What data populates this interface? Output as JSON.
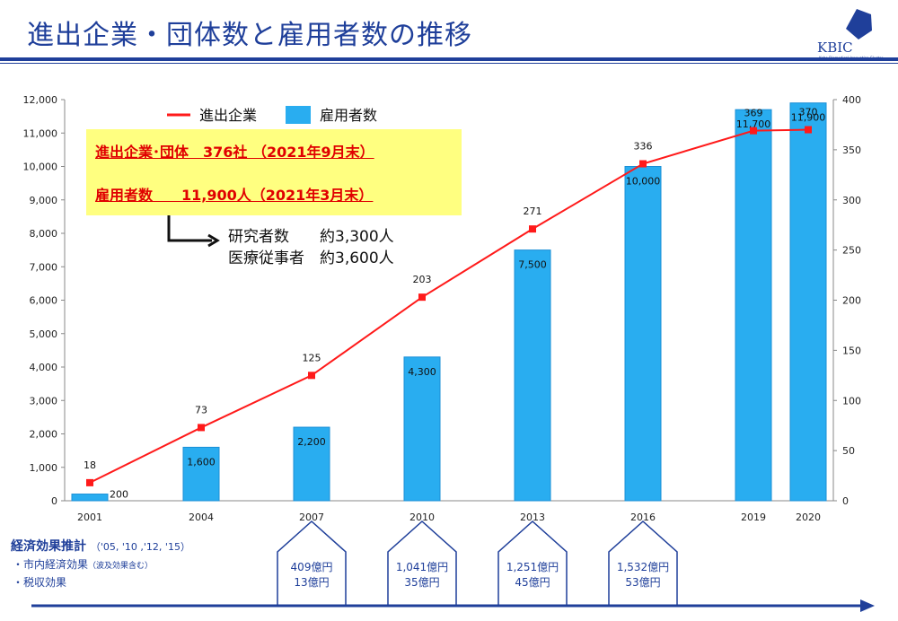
{
  "title": "進出企業・団体数と雇用者数の推移",
  "logo": {
    "text": "KBIC",
    "subtitle": "Kobe Biomedical Innovation Cluster"
  },
  "highlight": {
    "line1": "進出企業･団体　376社 （2021年9月末）",
    "line2": "雇用者数　　11,900人（2021年3月末）"
  },
  "breakdown": {
    "line1": "研究者数　　約3,300人",
    "line2": "医療従事者　約3,600人"
  },
  "economic": {
    "title": "経済効果推計",
    "years": "（'05, '10 ,'12, '15）",
    "item1": "・市内経済効果",
    "item1_note": "（波及効果含む）",
    "item2": "・税収効果",
    "houses": [
      {
        "category": "2007",
        "line1": "409億円",
        "line2": "13億円"
      },
      {
        "category": "2010",
        "line1": "1,041億円",
        "line2": "35億円"
      },
      {
        "category": "2013",
        "line1": "1,251億円",
        "line2": "45億円"
      },
      {
        "category": "2016",
        "line1": "1,532億円",
        "line2": "53億円"
      }
    ]
  },
  "chart_data": {
    "type": "bar",
    "categories": [
      "2001",
      "2004",
      "2007",
      "2010",
      "2013",
      "2016",
      "2019",
      "2020"
    ],
    "series": [
      {
        "name": "雇用者数",
        "type": "bar",
        "axis": "left",
        "values": [
          200,
          1600,
          2200,
          4300,
          7500,
          10000,
          11700,
          11900
        ],
        "labels": [
          "200",
          "1,600",
          "2,200",
          "4,300",
          "7,500",
          "10,000",
          "11,700",
          "11,900"
        ]
      },
      {
        "name": "進出企業",
        "type": "line",
        "axis": "right",
        "values": [
          18,
          73,
          125,
          203,
          271,
          336,
          369,
          370
        ],
        "labels": [
          "18",
          "73",
          "125",
          "203",
          "271",
          "336",
          "369",
          "370"
        ]
      }
    ],
    "y_left": {
      "min": 0,
      "max": 12000,
      "step": 1000,
      "ticks": [
        "0",
        "1,000",
        "2,000",
        "3,000",
        "4,000",
        "5,000",
        "6,000",
        "7,000",
        "8,000",
        "9,000",
        "10,000",
        "11,000",
        "12,000"
      ]
    },
    "y_right": {
      "min": 0,
      "max": 400,
      "step": 50,
      "ticks": [
        "0",
        "50",
        "100",
        "150",
        "200",
        "250",
        "300",
        "350",
        "400"
      ]
    },
    "legend_position": "top",
    "colors": {
      "bar": "#29adf0",
      "bar_edge": "#1a8fd6",
      "line": "#ff1a1a",
      "marker": "#ff1a1a",
      "text": "#1f3f9a"
    }
  }
}
